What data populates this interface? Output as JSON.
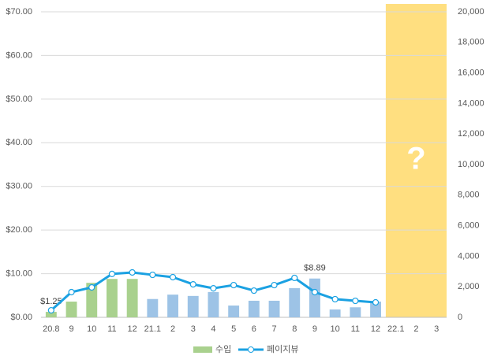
{
  "chart_data": {
    "type": "bar-line",
    "categories": [
      "20.8",
      "9",
      "10",
      "11",
      "12",
      "21.1",
      "2",
      "3",
      "4",
      "5",
      "6",
      "7",
      "8",
      "9",
      "10",
      "11",
      "12",
      "22.1",
      "2",
      "3"
    ],
    "series": [
      {
        "name": "수입",
        "type": "bar",
        "color": "#a9d18e",
        "colors": [
          "#a9d18e",
          "#a9d18e",
          "#a9d18e",
          "#a9d18e",
          "#a9d18e",
          "#9dc3e6",
          "#9dc3e6",
          "#9dc3e6",
          "#9dc3e6",
          "#9dc3e6",
          "#9dc3e6",
          "#9dc3e6",
          "#9dc3e6",
          "#9dc3e6",
          "#9dc3e6",
          "#9dc3e6",
          "#9dc3e6",
          null,
          null,
          null
        ],
        "values": [
          1.25,
          3.6,
          7.9,
          8.8,
          8.8,
          4.2,
          5.2,
          4.9,
          5.8,
          2.7,
          3.8,
          3.8,
          6.7,
          8.89,
          1.8,
          2.3,
          3.6,
          null,
          null,
          null
        ],
        "value_labels": [
          "$1.25",
          null,
          null,
          null,
          null,
          null,
          null,
          null,
          null,
          null,
          null,
          null,
          null,
          "$8.89",
          null,
          null,
          null,
          null,
          null,
          null
        ]
      },
      {
        "name": "페이지뷰",
        "type": "line",
        "axis": "y2",
        "color": "#1ba1e2",
        "values": [
          460,
          1650,
          1960,
          2840,
          2940,
          2780,
          2630,
          2160,
          1900,
          2110,
          1750,
          2110,
          2580,
          1650,
          1190,
          1080,
          980,
          null,
          null,
          null
        ]
      }
    ],
    "ylim": [
      0,
      70
    ],
    "yticks": [
      {
        "value": 0,
        "label": "$0.00"
      },
      {
        "value": 10,
        "label": "$10.00"
      },
      {
        "value": 20,
        "label": "$20.00"
      },
      {
        "value": 30,
        "label": "$30.00"
      },
      {
        "value": 40,
        "label": "$40.00"
      },
      {
        "value": 50,
        "label": "$50.00"
      },
      {
        "value": 60,
        "label": "$60.00"
      },
      {
        "value": 70,
        "label": "$70.00"
      }
    ],
    "y2lim": [
      0,
      20000
    ],
    "y2ticks": [
      0,
      {
        "value": 2000,
        "label": "2,000"
      },
      {
        "value": 4000,
        "label": "4,000"
      },
      {
        "value": 6000,
        "label": "6,000"
      },
      {
        "value": 8000,
        "label": "8,000"
      },
      {
        "value": 10000,
        "label": "10,000"
      },
      {
        "value": 12000,
        "label": "12,000"
      },
      {
        "value": 14000,
        "label": "14,000"
      },
      {
        "value": 16000,
        "label": "16,000"
      },
      {
        "value": 18000,
        "label": "18,000"
      },
      {
        "value": 20000,
        "label": "20,000"
      }
    ],
    "grid": true,
    "legend": "bottom",
    "highlight": {
      "text": "?",
      "color": "#ffdf80"
    }
  }
}
